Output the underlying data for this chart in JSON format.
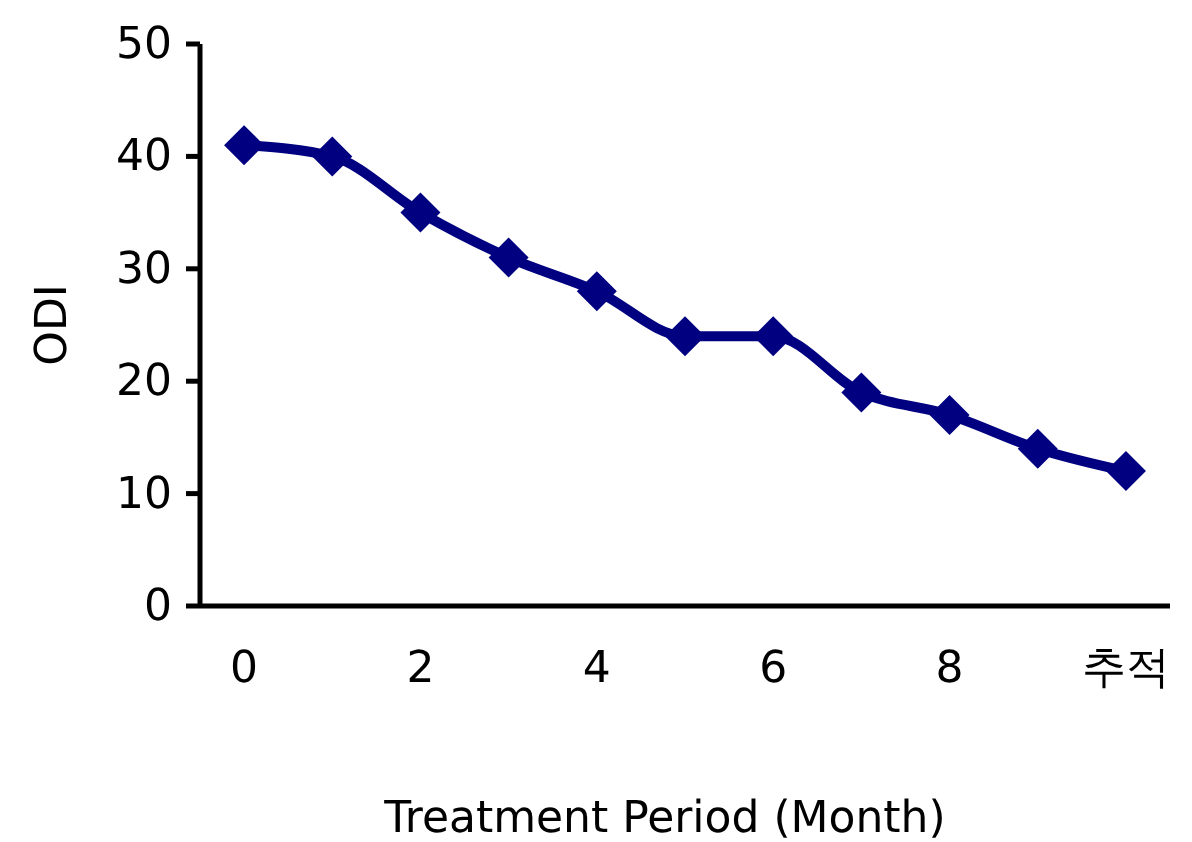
{
  "chart_data": {
    "type": "line",
    "xlabel": "Treatment Period (Month)",
    "ylabel": "ODI",
    "categories": [
      "0",
      null,
      "2",
      null,
      "4",
      null,
      "6",
      null,
      "8",
      null,
      "추적"
    ],
    "series": [
      {
        "color": "#000080",
        "values": [
          41,
          40,
          35,
          31,
          28,
          24,
          24,
          19,
          17,
          14,
          12
        ]
      }
    ],
    "ylim": [
      0,
      50
    ],
    "yticks": [
      0,
      10,
      20,
      30,
      40,
      50
    ],
    "grid": false,
    "marker": "diamond",
    "line_style": "solid"
  }
}
